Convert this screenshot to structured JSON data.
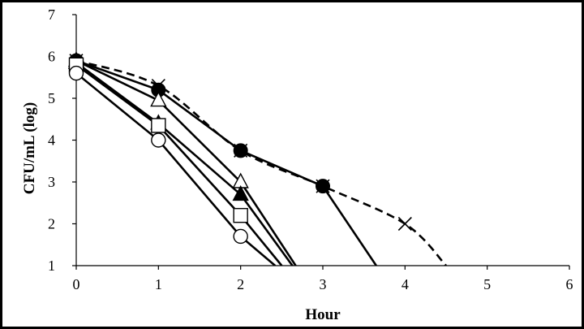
{
  "chart_data": {
    "type": "line",
    "xlabel": "Hour",
    "ylabel": "CFU/mL  (log)",
    "xlim": [
      0,
      6
    ],
    "ylim": [
      1,
      7
    ],
    "x_ticks": [
      0,
      1,
      2,
      3,
      4,
      5,
      6
    ],
    "y_ticks": [
      1,
      2,
      3,
      4,
      5,
      6,
      7
    ],
    "grid": false,
    "series": [
      {
        "marker": "cross",
        "style": "dashed",
        "points": [
          [
            0,
            5.9
          ],
          [
            1,
            5.3
          ],
          [
            2,
            3.75
          ],
          [
            3,
            2.9
          ],
          [
            4,
            2.0
          ],
          [
            4.5,
            1.0
          ]
        ]
      },
      {
        "marker": "filled-circle",
        "style": "solid",
        "points": [
          [
            0,
            5.9
          ],
          [
            1,
            5.2
          ],
          [
            2,
            3.75
          ],
          [
            3,
            2.9
          ],
          [
            3.65,
            1.0
          ]
        ]
      },
      {
        "marker": "open-triangle",
        "style": "solid",
        "points": [
          [
            0,
            5.9
          ],
          [
            1,
            4.95
          ],
          [
            2,
            3.0
          ],
          [
            2.67,
            1.0
          ]
        ]
      },
      {
        "marker": "filled-triangle",
        "style": "solid",
        "points": [
          [
            0,
            5.85
          ],
          [
            1,
            4.4
          ],
          [
            2,
            2.7
          ],
          [
            2.63,
            1.0
          ]
        ]
      },
      {
        "marker": "open-square",
        "style": "solid",
        "points": [
          [
            0,
            5.8
          ],
          [
            1,
            4.35
          ],
          [
            2,
            2.2
          ],
          [
            2.5,
            1.0
          ]
        ]
      },
      {
        "marker": "open-circle",
        "style": "solid",
        "points": [
          [
            0,
            5.6
          ],
          [
            1,
            4.0
          ],
          [
            2,
            1.7
          ],
          [
            2.42,
            1.0
          ]
        ]
      }
    ]
  }
}
